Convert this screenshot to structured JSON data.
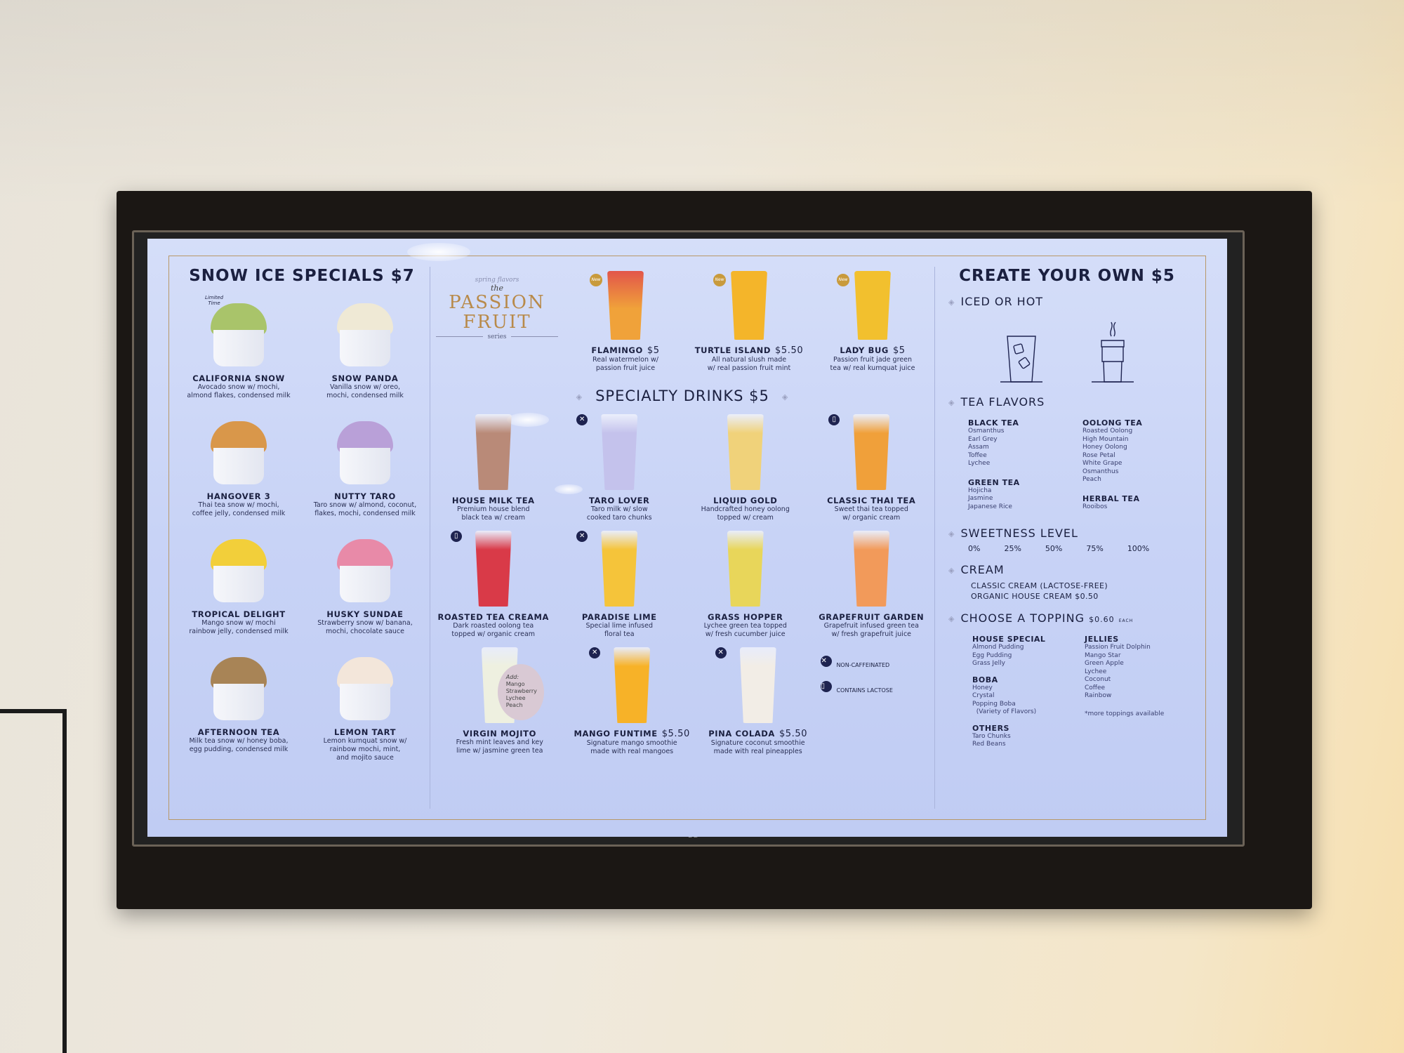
{
  "snow": {
    "title": "SNOW ICE SPECIALS $7",
    "items": [
      {
        "name": "CALIFORNIA SNOW",
        "desc": "Avocado snow w/ mochi,\nalmond flakes, condensed milk",
        "color": "#a9c46a",
        "tag": "Limited Time"
      },
      {
        "name": "SNOW PANDA",
        "desc": "Vanilla snow w/ oreo,\nmochi, condensed milk",
        "color": "#efe9d5"
      },
      {
        "name": "HANGOVER 3",
        "desc": "Thai tea snow w/ mochi,\ncoffee jelly, condensed milk",
        "color": "#d9974a"
      },
      {
        "name": "NUTTY TARO",
        "desc": "Taro snow w/ almond, coconut,\nflakes, mochi, condensed milk",
        "color": "#b9a0d8"
      },
      {
        "name": "TROPICAL DELIGHT",
        "desc": "Mango snow w/ mochi\nrainbow jelly, condensed milk",
        "color": "#f2cf3a"
      },
      {
        "name": "HUSKY SUNDAE",
        "desc": "Strawberry snow w/ banana,\nmochi, chocolate sauce",
        "color": "#e88aa8"
      },
      {
        "name": "AFTERNOON TEA",
        "desc": "Milk tea snow w/ honey boba,\negg pudding, condensed milk",
        "color": "#a88456"
      },
      {
        "name": "LEMON TART",
        "desc": "Lemon kumquat snow w/\nrainbow mochi, mint,\nand mojito sauce",
        "color": "#f3e6da"
      }
    ]
  },
  "passion": {
    "kicker": "spring flavors",
    "the": "the",
    "title1": "PASSION",
    "title2": "FRUIT",
    "series": "series",
    "new_label": "New",
    "items": [
      {
        "name": "FLAMINGO",
        "price": "$5",
        "desc": "Real watermelon w/\npassion fruit juice",
        "color": "#f0a23a",
        "top": "#e2554a"
      },
      {
        "name": "TURTLE ISLAND",
        "price": "$5.50",
        "desc": "All natural slush made\nw/ real passion fruit mint",
        "color": "#f4b52a",
        "top": "#f4b52a"
      },
      {
        "name": "LADY BUG",
        "price": "$5",
        "desc": "Passion fruit jade green\ntea w/ real kumquat juice",
        "color": "#f2c02e",
        "top": "#f2c02e"
      }
    ]
  },
  "specialty": {
    "title": "SPECIALTY DRINKS $5",
    "items": [
      {
        "name": "HOUSE MILK TEA",
        "desc": "Premium house blend\nblack tea w/ cream",
        "color": "#b98a78",
        "badge": ""
      },
      {
        "name": "TARO LOVER",
        "desc": "Taro milk w/ slow\ncooked taro chunks",
        "color": "#c4c2ec",
        "badge": "non-caffeinated"
      },
      {
        "name": "LIQUID GOLD",
        "desc": "Handcrafted honey oolong\ntopped w/ cream",
        "color": "#f0d27a",
        "badge": ""
      },
      {
        "name": "CLASSIC THAI TEA",
        "desc": "Sweet thai tea topped\nw/ organic cream",
        "color": "#f0a03a",
        "badge": "lactose"
      },
      {
        "name": "ROASTED TEA CREAMA",
        "desc": "Dark roasted oolong tea\ntopped w/ organic cream",
        "color": "#d93a48",
        "badge": "lactose"
      },
      {
        "name": "PARADISE LIME",
        "desc": "Special lime infused\nfloral tea",
        "color": "#f5c43a",
        "badge": "non-caffeinated"
      },
      {
        "name": "GRASS HOPPER",
        "desc": "Lychee green tea topped\nw/ fresh cucumber juice",
        "color": "#e8d65a",
        "badge": ""
      },
      {
        "name": "GRAPEFRUIT GARDEN",
        "desc": "Grapefruit infused green tea\nw/ fresh grapefruit juice",
        "color": "#f29a5a",
        "badge": ""
      }
    ],
    "row3": [
      {
        "name": "VIRGIN MOJITO",
        "price": "",
        "desc": "Fresh mint leaves and key\nlime w/ jasmine green tea",
        "color": "#eef0e0",
        "badge": "",
        "add": [
          "Add:",
          "Mango",
          "Strawberry",
          "Lychee",
          "Peach"
        ]
      },
      {
        "name": "MANGO FUNTIME",
        "price": "$5.50",
        "desc": "Signature mango smoothie\nmade with real mangoes",
        "color": "#f7b228",
        "badge": "non-caffeinated"
      },
      {
        "name": "PINA COLADA",
        "price": "$5.50",
        "desc": "Signature  coconut smoothie\nmade with real pineapples",
        "color": "#f2ede6",
        "badge": "non-caffeinated"
      }
    ],
    "legend": [
      {
        "icon": "non-caffeinated",
        "label": "NON-CAFFEINATED"
      },
      {
        "icon": "lactose",
        "label": "CONTAINS LACTOSE"
      }
    ]
  },
  "create": {
    "title": "CREATE YOUR OWN $5",
    "iced_hot": "ICED OR HOT",
    "tea_flavors": "TEA FLAVORS",
    "black": {
      "label": "BLACK TEA",
      "items": [
        "Osmanthus",
        "Earl Grey",
        "Assam",
        "Toffee",
        "Lychee"
      ]
    },
    "green": {
      "label": "GREEN TEA",
      "items": [
        "Hojicha",
        "Jasmine",
        "Japanese Rice"
      ]
    },
    "oolong": {
      "label": "OOLONG TEA",
      "items": [
        "Roasted Oolong",
        "High Mountain",
        "Honey Oolong",
        "Rose Petal",
        "White Grape",
        "Osmanthus",
        "Peach"
      ]
    },
    "herbal": {
      "label": "HERBAL TEA",
      "items": [
        "Rooibos"
      ]
    },
    "sweetness": {
      "label": "SWEETNESS LEVEL",
      "levels": [
        "0%",
        "25%",
        "50%",
        "75%",
        "100%"
      ]
    },
    "cream": {
      "label": "CREAM",
      "items": [
        "CLASSIC CREAM (LACTOSE-FREE)",
        "ORGANIC HOUSE CREAM $0.50"
      ]
    },
    "topping": {
      "label": "CHOOSE A TOPPING",
      "price": "$0.60",
      "each": "EACH",
      "house": {
        "label": "HOUSE SPECIAL",
        "items": [
          "Almond Pudding",
          "Egg Pudding",
          "Grass Jelly"
        ]
      },
      "boba": {
        "label": "BOBA",
        "items": [
          "Honey",
          "Crystal",
          "Popping Boba",
          "  (Variety of Flavors)"
        ]
      },
      "others": {
        "label": "OTHERS",
        "items": [
          "Taro Chunks",
          "Red Beans"
        ]
      },
      "jellies": {
        "label": "JELLIES",
        "items": [
          "Passion Fruit Dolphin",
          "Mango Star",
          "Green Apple",
          "Lychee",
          "Coconut",
          "Coffee",
          "Rainbow"
        ]
      },
      "note": "*more toppings available"
    }
  },
  "tv_brand": "LG",
  "colors": {
    "screen": "#c8d3f6",
    "text": "#1b2040",
    "gold": "#b88a4a",
    "frame": "#1b1714"
  }
}
